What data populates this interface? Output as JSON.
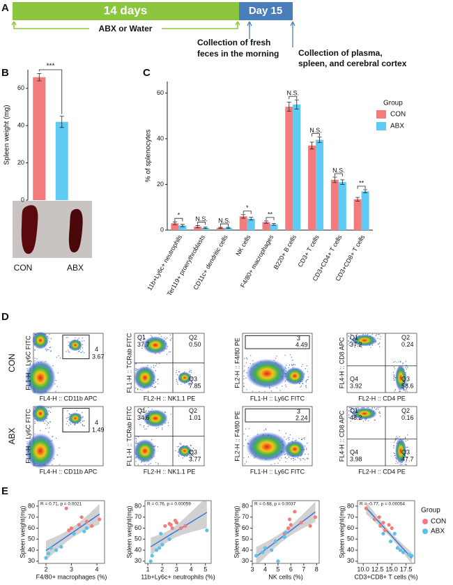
{
  "panel_a": {
    "label": "A",
    "period": "14 days",
    "day": "Day 15",
    "treatment": "ABX or Water",
    "event1": [
      "Collection of fresh",
      "feces in the morning"
    ],
    "event2": [
      "Collection of plasma,",
      "spleen, and cerebral cortex"
    ]
  },
  "chart_data": [
    {
      "panel": "B",
      "type": "bar",
      "ylabel": "Spleen weight (mg)",
      "categories": [
        "CON",
        "ABX"
      ],
      "values": [
        66,
        42
      ],
      "errors": [
        2,
        3
      ],
      "colors": [
        "#f47b7b",
        "#5ecbf5"
      ],
      "ylim": [
        0,
        70
      ],
      "yticks": [
        0,
        20,
        40,
        60
      ],
      "significance": "***"
    },
    {
      "panel": "C",
      "type": "bar",
      "ylabel": "% of splenocytes",
      "categories": [
        "11b+Ly6c+ neutrophils",
        "Ter119+ proerythroblasts",
        "CD11c+ dendritic cells",
        "NK cells",
        "F4/80+ macrophages",
        "B220+ B cells",
        "CD3+ T cells",
        "CD3+CD4+ T cells",
        "CD3+CD8+ T cells"
      ],
      "series": [
        {
          "name": "CON",
          "color": "#f47b7b",
          "values": [
            3,
            1.5,
            1,
            6,
            3.5,
            54,
            37,
            22,
            13.5
          ],
          "errors": [
            0.6,
            0.5,
            0.2,
            0.8,
            0.5,
            2,
            1.5,
            1.2,
            0.8
          ]
        },
        {
          "name": "ABX",
          "color": "#5ecbf5",
          "values": [
            2,
            1,
            1,
            5,
            2.5,
            55,
            39.5,
            21,
            17
          ],
          "errors": [
            0.5,
            0.3,
            0.2,
            0.6,
            0.4,
            2,
            1.2,
            1,
            0.7
          ]
        }
      ],
      "significance": [
        "*",
        "N.S.",
        "N.S.",
        "*",
        "**",
        "N.S.",
        "N.S.",
        "N.S.",
        "**"
      ],
      "ylim": [
        0,
        65
      ],
      "yticks": [
        0,
        20,
        40,
        60
      ],
      "legend_title": "Group"
    },
    {
      "panel": "E",
      "type": "scatter",
      "annotation": "R = 0.71, p = 0.0021",
      "xlabel": "F4/80+ macrophages (%)",
      "ylabel": "Spleen weight(mg)",
      "xlim": [
        1.7,
        4.3
      ],
      "ylim": [
        28,
        85
      ],
      "xticks": [
        2,
        3,
        4
      ],
      "yticks": [
        30,
        40,
        50,
        60,
        70,
        80
      ],
      "series": [
        {
          "name": "CON",
          "color": "#f47b7b",
          "x": [
            2.8,
            3.4,
            3.6,
            3.8,
            4.1,
            3.3,
            3.0,
            2.9
          ],
          "values": [
            78,
            70,
            66,
            62,
            68,
            63,
            60,
            58
          ]
        },
        {
          "name": "ABX",
          "color": "#5ebfea",
          "x": [
            2.0,
            2.1,
            2.2,
            2.4,
            3.1,
            3.5,
            3.6,
            2.6
          ],
          "values": [
            33,
            37,
            42,
            40,
            55,
            57,
            60,
            43
          ]
        }
      ]
    },
    {
      "type": "scatter",
      "annotation": "R = 0.76, p = 0.00059",
      "xlabel": "11b+Ly6c+ neutrophils (%)",
      "ylabel": "Spleen weight(mg)",
      "xlim": [
        0.8,
        5.4
      ],
      "ylim": [
        28,
        85
      ],
      "xticks": [
        1,
        2,
        3,
        4,
        5
      ],
      "yticks": [
        30,
        40,
        50,
        60,
        70,
        80
      ],
      "series": [
        {
          "name": "CON",
          "color": "#f47b7b",
          "x": [
            2.2,
            2.6,
            2.9,
            3.0,
            3.3,
            3.6,
            2.5,
            2.7
          ],
          "values": [
            62,
            63,
            67,
            65,
            60,
            62,
            64,
            60
          ]
        },
        {
          "name": "ABX",
          "color": "#5ebfea",
          "x": [
            1.2,
            1.3,
            1.6,
            1.8,
            2.0,
            5.1,
            1.9,
            2.5
          ],
          "values": [
            30,
            35,
            40,
            42,
            45,
            58,
            55,
            50
          ]
        }
      ]
    },
    {
      "type": "scatter",
      "annotation": "R = 0.68, p = 0.0037",
      "xlabel": "NK cells (%)",
      "ylabel": "Spleen weight(mg)",
      "xlim": [
        3,
        8.2
      ],
      "ylim": [
        28,
        85
      ],
      "xticks": [
        3,
        4,
        5,
        6,
        7,
        8
      ],
      "yticks": [
        30,
        40,
        50,
        60,
        70,
        80
      ],
      "series": [
        {
          "name": "CON",
          "color": "#f47b7b",
          "x": [
            5.5,
            5.8,
            6.3,
            6.8,
            7.5,
            7.9,
            5.9,
            6.0
          ],
          "values": [
            55,
            60,
            75,
            65,
            62,
            70,
            68,
            63
          ]
        },
        {
          "name": "ABX",
          "color": "#5ebfea",
          "x": [
            3.3,
            3.8,
            4.0,
            4.5,
            4.8,
            5.0,
            5.5,
            5.6
          ],
          "values": [
            35,
            38,
            42,
            40,
            48,
            30,
            52,
            56
          ]
        }
      ]
    },
    {
      "type": "scatter",
      "annotation": "R = -0.77, p = 0.00054",
      "xlabel": "CD3+CD8+ T cells (%)",
      "ylabel": "Spleen weight(mg)",
      "xlim": [
        9,
        19
      ],
      "ylim": [
        28,
        85
      ],
      "xticks": [
        {
          "value": 10,
          "label": "10.0"
        },
        12.5,
        {
          "value": 15,
          "label": "15.0"
        },
        17.5
      ],
      "yticks": [
        30,
        40,
        50,
        60,
        70,
        80
      ],
      "legend_title": "Group",
      "series": [
        {
          "name": "CON",
          "color": "#f47b7b",
          "x": [
            10.5,
            12.0,
            13.0,
            13.5,
            14.5,
            15.0,
            12.8,
            13.8
          ],
          "values": [
            78,
            68,
            62,
            65,
            63,
            60,
            70,
            58
          ]
        },
        {
          "name": "ABX",
          "color": "#5ebfea",
          "x": [
            13.5,
            14.8,
            16.0,
            16.5,
            17.0,
            18.5,
            18.0,
            15.5
          ],
          "values": [
            55,
            48,
            42,
            40,
            38,
            35,
            36,
            55
          ]
        }
      ]
    }
  ],
  "panel_d": {
    "label": "D",
    "rows": [
      "CON",
      "ABX"
    ],
    "plots": [
      [
        {
          "xlabel": "FL4-H :: CD11b APC",
          "ylabel": "FL1-H :: Ly6C FITC",
          "gate": "4",
          "percent": "3.67"
        },
        {
          "xlabel": "FL2-H :: NK1.1 PE",
          "ylabel": "FL1-H :: TCRab FITC",
          "quadrants": [
            {
              "name": "Q1",
              "percent": "37.7"
            },
            {
              "name": "Q2",
              "percent": "0.50"
            },
            {
              "name": "Q3",
              "percent": "7.85"
            }
          ]
        },
        {
          "xlabel": "FL1-H :: Ly6C FITC",
          "ylabel": "FL2-H :: F4/80 PE",
          "gate": "3",
          "percent": "4.49"
        },
        {
          "xlabel": "FL2-H :: CD4 PE",
          "ylabel": "FL4-H :: CD8 APC",
          "quadrants": [
            {
              "name": "Q1",
              "percent": "37.2"
            },
            {
              "name": "Q2",
              "percent": "0.24"
            },
            {
              "name": "Q4",
              "percent": "3.92"
            },
            {
              "name": "Q3",
              "percent": "58.6"
            }
          ]
        }
      ],
      [
        {
          "xlabel": "FL4-H :: CD11b APC",
          "ylabel": "FL1-H :: Ly6C FITC",
          "gate": "4",
          "percent": "1.49"
        },
        {
          "xlabel": "FL2-H :: NK1.1 PE",
          "ylabel": "FL1-H :: TCRab FITC",
          "quadrants": [
            {
              "name": "Q1",
              "percent": "34.6"
            },
            {
              "name": "Q2",
              "percent": "1.01"
            },
            {
              "name": "Q3",
              "percent": "3.77"
            }
          ]
        },
        {
          "xlabel": "FL1-H :: Ly6C FITC",
          "ylabel": "FL2-H :: F4/80 PE",
          "gate": "3",
          "percent": "2.24"
        },
        {
          "xlabel": "FL2-H :: CD4 PE",
          "ylabel": "FL4-H :: CD8 APC",
          "quadrants": [
            {
              "name": "Q1",
              "percent": "48.2"
            },
            {
              "name": "Q2",
              "percent": "0.16"
            },
            {
              "name": "Q4",
              "percent": "3.98"
            },
            {
              "name": "Q3",
              "percent": "47.7"
            }
          ]
        }
      ]
    ]
  }
}
